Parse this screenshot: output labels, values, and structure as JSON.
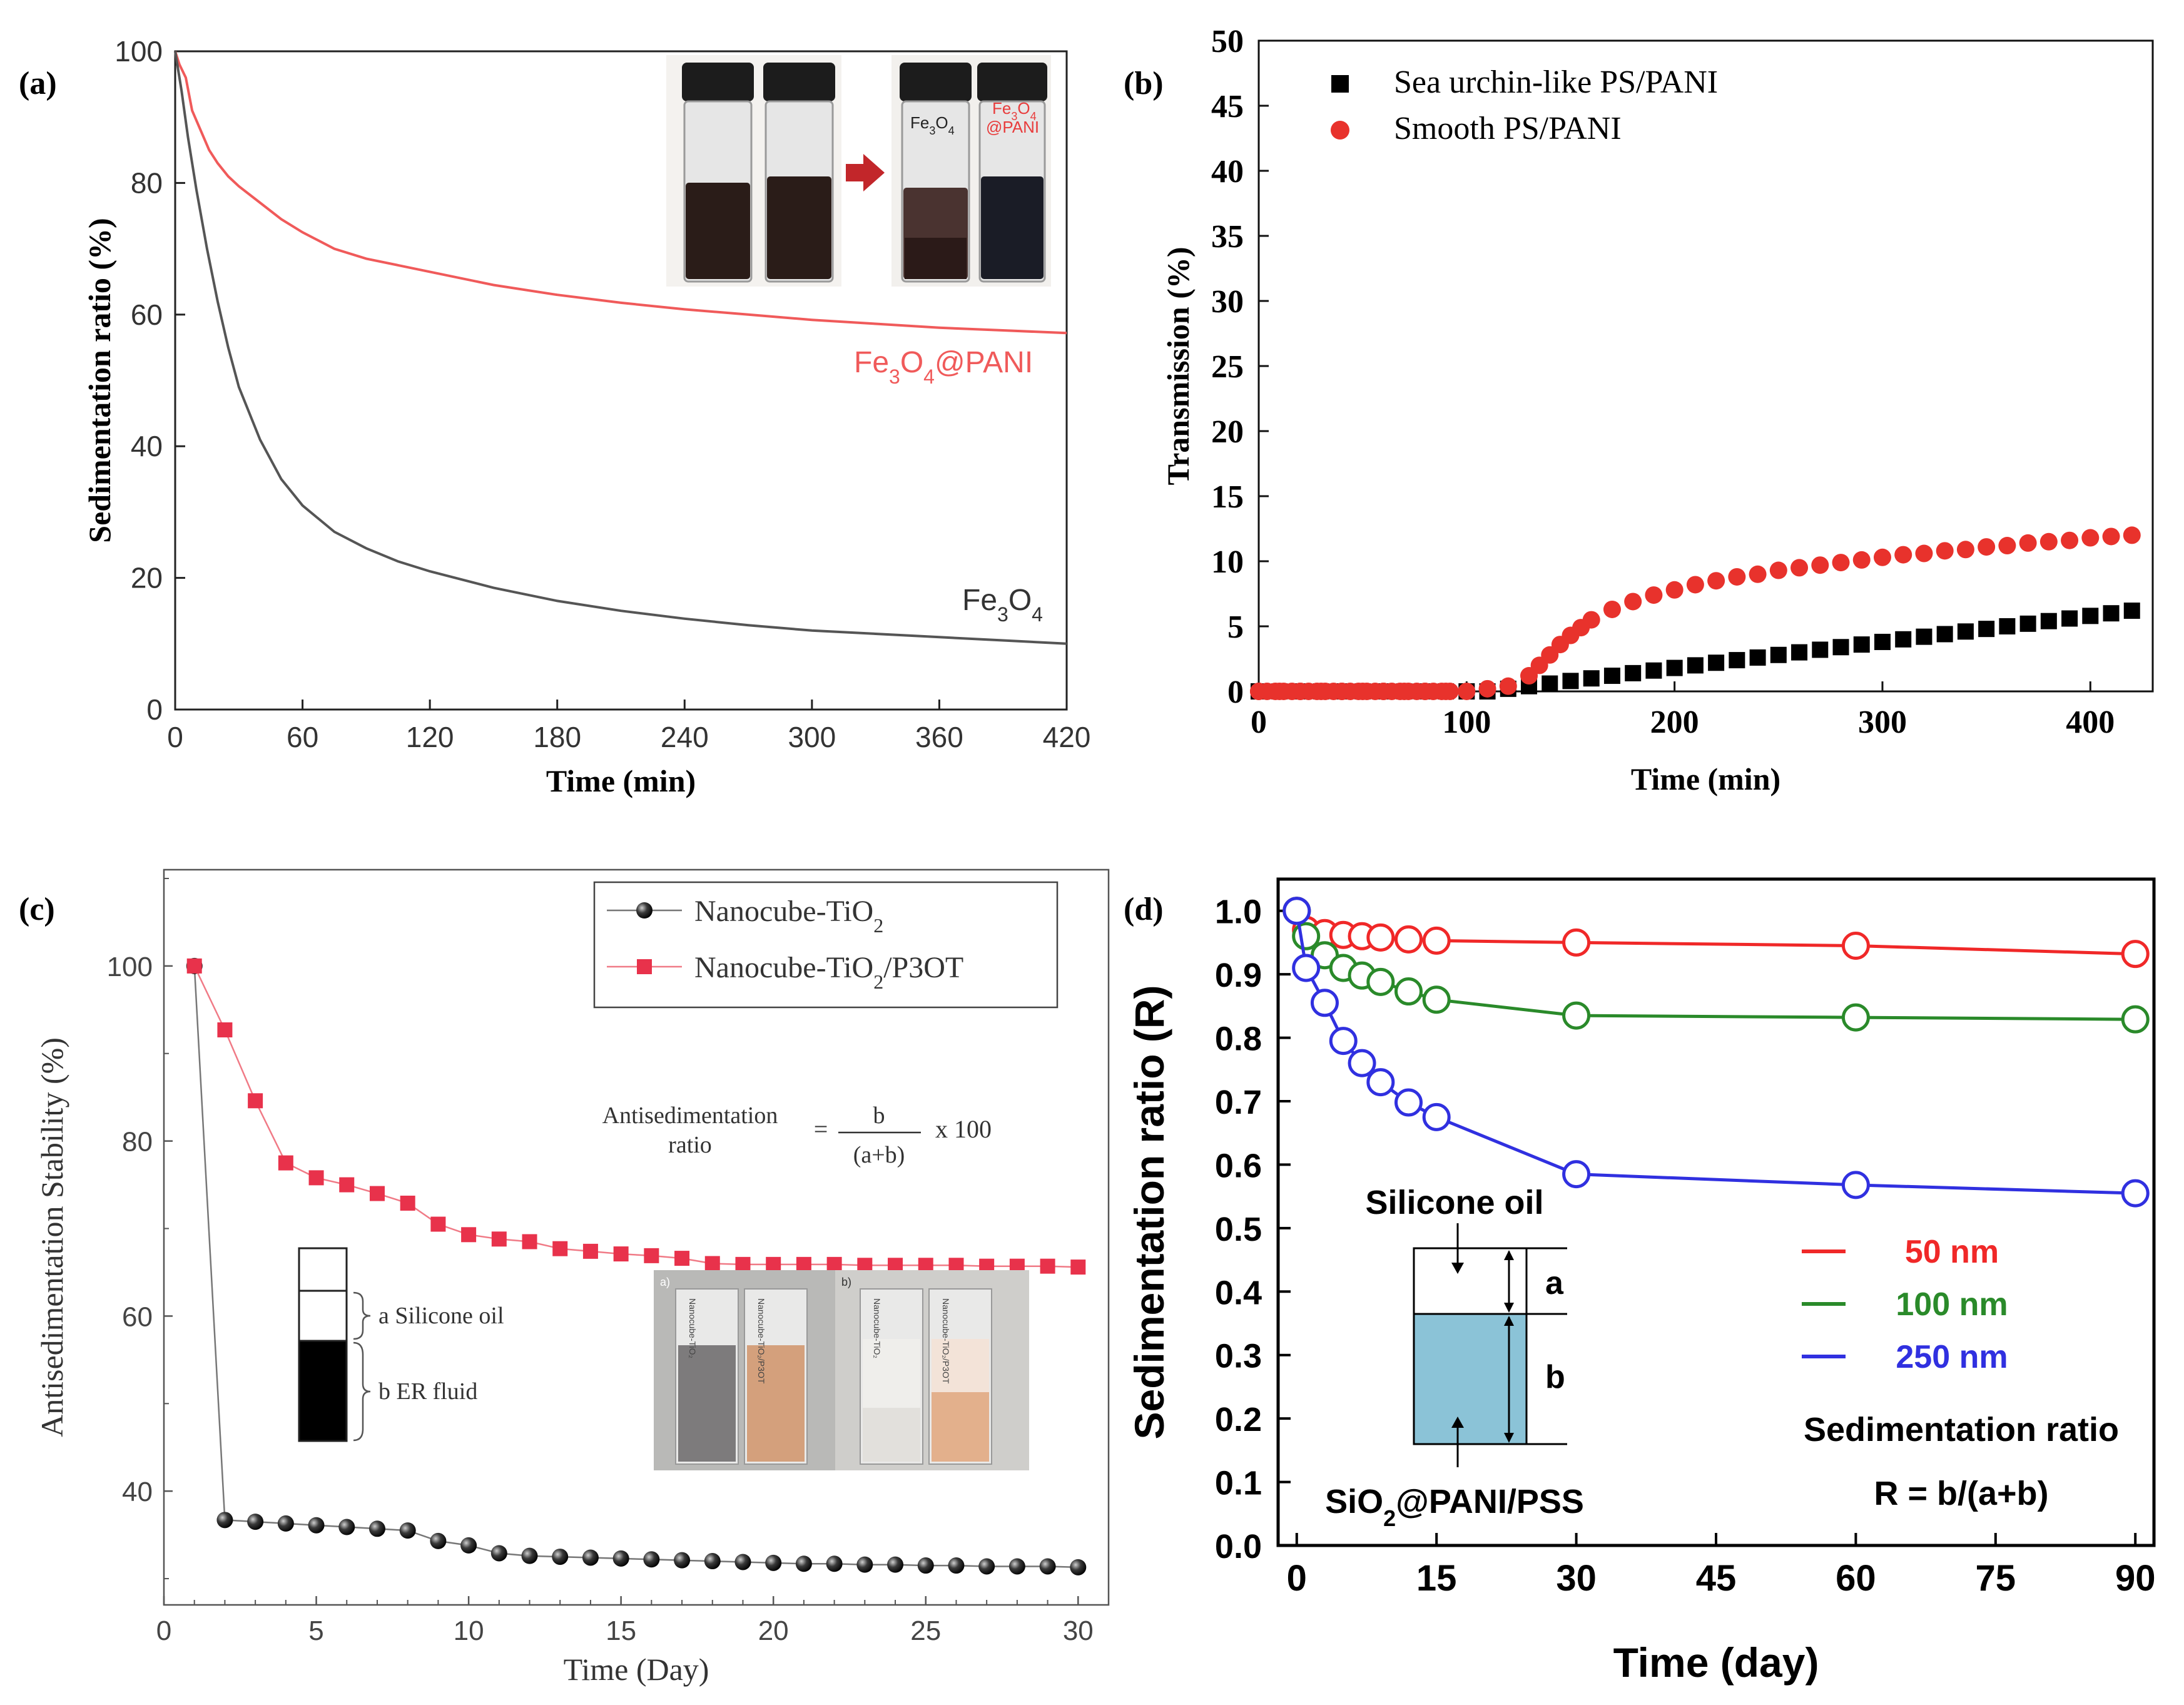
{
  "figure": {
    "background": "#ffffff"
  },
  "chart_data": [
    {
      "id": "a",
      "panel_label": "(a)",
      "type": "line",
      "xlabel": "Time (min)",
      "ylabel": "Sedimentation ratio (%)",
      "xlim": [
        0,
        420
      ],
      "ylim": [
        0,
        100
      ],
      "xticks": [
        0,
        60,
        120,
        180,
        240,
        300,
        360,
        420
      ],
      "yticks": [
        0,
        20,
        40,
        60,
        80,
        100
      ],
      "series": [
        {
          "name": "Fe3O4@PANI",
          "label_parts": [
            {
              "text": "Fe"
            },
            {
              "text": "3",
              "sub": true
            },
            {
              "text": "O"
            },
            {
              "text": "4",
              "sub": true
            },
            {
              "text": "@PANI"
            }
          ],
          "color": "#f05a5a",
          "x": [
            0,
            2,
            5,
            8,
            12,
            16,
            20,
            25,
            30,
            40,
            50,
            60,
            75,
            90,
            105,
            120,
            150,
            180,
            210,
            240,
            270,
            300,
            330,
            360,
            390,
            420
          ],
          "values": [
            100,
            98,
            96,
            91,
            88,
            85,
            83,
            81,
            79.5,
            77,
            74.5,
            72.5,
            70,
            68.5,
            67.5,
            66.5,
            64.5,
            63,
            61.8,
            60.8,
            60,
            59.2,
            58.6,
            58,
            57.6,
            57.2
          ]
        },
        {
          "name": "Fe3O4",
          "label_parts": [
            {
              "text": "Fe"
            },
            {
              "text": "3",
              "sub": true
            },
            {
              "text": "O"
            },
            {
              "text": "4",
              "sub": true
            }
          ],
          "color": "#555555",
          "x": [
            0,
            3,
            6,
            10,
            15,
            20,
            25,
            30,
            40,
            50,
            60,
            75,
            90,
            105,
            120,
            150,
            180,
            210,
            240,
            270,
            300,
            330,
            360,
            390,
            420
          ],
          "values": [
            100,
            94,
            87,
            79,
            70,
            62,
            55,
            49,
            41,
            35,
            31,
            27,
            24.5,
            22.5,
            21,
            18.5,
            16.5,
            15,
            13.8,
            12.8,
            12,
            11.5,
            11,
            10.5,
            10
          ]
        }
      ],
      "inset": {
        "description": "vial photos",
        "left_tag": "Fe3O4",
        "right_tag": "Fe3O4@PANI",
        "left_tag_parts": [
          {
            "text": "Fe"
          },
          {
            "text": "3",
            "sub": true
          },
          {
            "text": "O"
          },
          {
            "text": "4",
            "sub": true
          }
        ],
        "right_tag_line1": [
          {
            "text": "Fe"
          },
          {
            "text": "3",
            "sub": true
          },
          {
            "text": "O"
          },
          {
            "text": "4",
            "sub": true
          }
        ],
        "right_tag_line2": "@PANI"
      }
    },
    {
      "id": "b",
      "panel_label": "(b)",
      "type": "scatter",
      "xlabel": "Time (min)",
      "ylabel": "Transmission (%)",
      "xlim": [
        0,
        430
      ],
      "ylim": [
        0,
        50
      ],
      "xticks": [
        0,
        100,
        200,
        300,
        400
      ],
      "yticks": [
        0,
        5,
        10,
        15,
        20,
        25,
        30,
        35,
        40,
        45,
        50
      ],
      "legend_position": "top-left",
      "series": [
        {
          "name": "Sea urchin-like PS/PANI",
          "marker": "square",
          "color": "#000000",
          "x": [
            0,
            10,
            20,
            30,
            40,
            50,
            60,
            70,
            80,
            90,
            100,
            110,
            120,
            130,
            140,
            150,
            160,
            170,
            180,
            190,
            200,
            210,
            220,
            230,
            240,
            250,
            260,
            270,
            280,
            290,
            300,
            310,
            320,
            330,
            340,
            350,
            360,
            370,
            380,
            390,
            400,
            410,
            420
          ],
          "values": [
            0,
            0,
            0,
            0,
            0,
            0,
            0,
            0,
            0,
            0,
            0,
            0,
            0.2,
            0.4,
            0.6,
            0.8,
            1.0,
            1.2,
            1.4,
            1.6,
            1.8,
            2.0,
            2.2,
            2.4,
            2.6,
            2.8,
            3.0,
            3.2,
            3.4,
            3.6,
            3.8,
            4.0,
            4.2,
            4.4,
            4.6,
            4.8,
            5.0,
            5.2,
            5.4,
            5.6,
            5.8,
            6.0,
            6.2
          ]
        },
        {
          "name": "Smooth PS/PANI",
          "marker": "circle",
          "color": "#e8322c",
          "x": [
            0,
            10,
            20,
            30,
            40,
            50,
            60,
            70,
            80,
            90,
            100,
            110,
            120,
            130,
            135,
            140,
            145,
            150,
            155,
            160,
            170,
            180,
            190,
            200,
            210,
            220,
            230,
            240,
            250,
            260,
            270,
            280,
            290,
            300,
            310,
            320,
            330,
            340,
            350,
            360,
            370,
            380,
            390,
            400,
            410,
            420
          ],
          "values": [
            0,
            0,
            0,
            0,
            0,
            0,
            0,
            0,
            0,
            0,
            0,
            0.2,
            0.4,
            1.2,
            2.0,
            2.8,
            3.6,
            4.3,
            4.9,
            5.5,
            6.3,
            6.9,
            7.4,
            7.8,
            8.2,
            8.5,
            8.8,
            9.0,
            9.3,
            9.5,
            9.7,
            9.9,
            10.1,
            10.3,
            10.5,
            10.6,
            10.8,
            10.9,
            11.1,
            11.2,
            11.4,
            11.5,
            11.6,
            11.8,
            11.9,
            12.0
          ]
        }
      ]
    },
    {
      "id": "c",
      "panel_label": "(c)",
      "type": "line",
      "xlabel": "Time (Day)",
      "ylabel": "Antisedimentation Stability (%)",
      "xlim": [
        0,
        31
      ],
      "ylim": [
        27,
        111
      ],
      "xticks": [
        0,
        5,
        10,
        15,
        20,
        25,
        30
      ],
      "yticks": [
        40,
        60,
        80,
        100
      ],
      "legend_position": "top-right",
      "series": [
        {
          "name": "Nanocube-TiO2",
          "label_parts": [
            {
              "text": "Nanocube-TiO"
            },
            {
              "text": "2",
              "sub": true
            }
          ],
          "marker": "sphere",
          "color": "#000000",
          "x": [
            1,
            2,
            3,
            4,
            5,
            6,
            7,
            8,
            9,
            10,
            11,
            12,
            13,
            14,
            15,
            16,
            17,
            18,
            19,
            20,
            21,
            22,
            23,
            24,
            25,
            26,
            27,
            28,
            29,
            30
          ],
          "values": [
            100,
            36.7,
            36.5,
            36.3,
            36.1,
            35.9,
            35.7,
            35.5,
            34.3,
            33.8,
            32.9,
            32.6,
            32.5,
            32.4,
            32.3,
            32.2,
            32.1,
            32.0,
            31.9,
            31.8,
            31.7,
            31.7,
            31.6,
            31.6,
            31.5,
            31.5,
            31.4,
            31.4,
            31.4,
            31.3
          ]
        },
        {
          "name": "Nanocube-TiO2/P3OT",
          "label_parts": [
            {
              "text": "Nanocube-TiO"
            },
            {
              "text": "2",
              "sub": true
            },
            {
              "text": "/P3OT"
            }
          ],
          "marker": "square",
          "color": "#e8324b",
          "x": [
            1,
            2,
            3,
            4,
            5,
            6,
            7,
            8,
            9,
            10,
            11,
            12,
            13,
            14,
            15,
            16,
            17,
            18,
            19,
            20,
            21,
            22,
            23,
            24,
            25,
            26,
            27,
            28,
            29,
            30
          ],
          "values": [
            100,
            92.7,
            84.6,
            77.5,
            75.8,
            75.0,
            74.0,
            72.9,
            70.5,
            69.3,
            68.8,
            68.5,
            67.7,
            67.4,
            67.1,
            66.9,
            66.6,
            66.0,
            65.9,
            65.9,
            65.9,
            65.9,
            65.8,
            65.8,
            65.8,
            65.8,
            65.7,
            65.7,
            65.7,
            65.6
          ]
        }
      ],
      "equation": {
        "lhs_line1": "Antisedimentation",
        "lhs_line2": "ratio",
        "equals": "=",
        "numerator": "b",
        "denominator": "(a+b)",
        "suffix": "x 100"
      },
      "schematic": {
        "a_label": "a Silicone oil",
        "b_label": "b ER fluid"
      },
      "photo": {
        "tag_a": "a)",
        "tag_b": "b)",
        "vials": [
          "Nanocube-TiO₂",
          "Nanocube-TiO₂/P3OT",
          "Nanocube-TiO₂",
          "Nanocube-TiO₂/P3OT"
        ]
      }
    },
    {
      "id": "d",
      "panel_label": "(d)",
      "type": "line",
      "xlabel": "Time (day)",
      "ylabel": "Sedimentation ratio (R)",
      "xlim": [
        -2,
        92
      ],
      "ylim": [
        0,
        1.05
      ],
      "xticks": [
        0,
        15,
        30,
        45,
        60,
        75,
        90
      ],
      "yticks": [
        0.0,
        0.1,
        0.2,
        0.3,
        0.4,
        0.5,
        0.6,
        0.7,
        0.8,
        0.9,
        1.0
      ],
      "ytick_labels": [
        "0.0",
        "0.1",
        "0.2",
        "0.3",
        "0.4",
        "0.5",
        "0.6",
        "0.7",
        "0.8",
        "0.9",
        "1.0"
      ],
      "legend_position": "lower-right",
      "series": [
        {
          "name": "50 nm",
          "marker": "open-circle",
          "color": "#f02828",
          "x": [
            0,
            1,
            3,
            5,
            7,
            9,
            12,
            15,
            30,
            60,
            90
          ],
          "values": [
            1.0,
            0.97,
            0.965,
            0.962,
            0.96,
            0.958,
            0.955,
            0.953,
            0.95,
            0.945,
            0.932
          ]
        },
        {
          "name": "100 nm",
          "marker": "open-circle",
          "color": "#2a8a2a",
          "x": [
            0,
            1,
            3,
            5,
            7,
            9,
            12,
            15,
            30,
            60,
            90
          ],
          "values": [
            1.0,
            0.96,
            0.93,
            0.91,
            0.898,
            0.888,
            0.873,
            0.86,
            0.835,
            0.832,
            0.829
          ]
        },
        {
          "name": "250 nm",
          "marker": "open-circle",
          "color": "#3030e0",
          "x": [
            0,
            1,
            3,
            5,
            7,
            9,
            12,
            15,
            30,
            60,
            90
          ],
          "values": [
            1.0,
            0.91,
            0.855,
            0.795,
            0.76,
            0.73,
            0.698,
            0.675,
            0.585,
            0.568,
            0.555
          ]
        }
      ],
      "annotations": {
        "top_label": "Silicone oil",
        "bottom_label_parts": [
          {
            "text": "SiO"
          },
          {
            "text": "2",
            "sub": true
          },
          {
            "text": "@PANI/PSS"
          }
        ],
        "a": "a",
        "b": "b",
        "sedimentation_title": "Sedimentation ratio",
        "formula": "R = b/(a+b)"
      }
    }
  ]
}
